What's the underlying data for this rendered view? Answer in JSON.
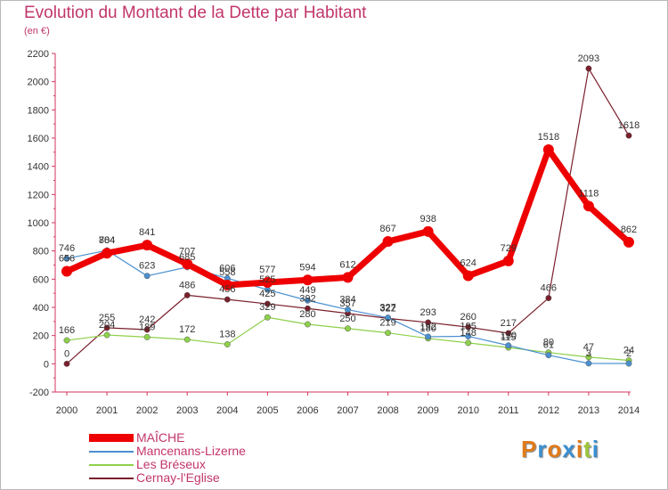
{
  "title": "Evolution du Montant de la Dette par Habitant",
  "subtitle": "(en €)",
  "logo": {
    "text": "Proxiti",
    "colors": [
      "#e07b1a",
      "#3a8fd0",
      "#e07b1a",
      "#3a8fd0",
      "#e07b1a",
      "#9cc63b",
      "#3a8fd0"
    ]
  },
  "chart_data": {
    "type": "line",
    "title": "Evolution du Montant de la Dette par Habitant",
    "subtitle": "(en €)",
    "x": [
      "2000",
      "2001",
      "2002",
      "2003",
      "2004",
      "2005",
      "2006",
      "2007",
      "2008",
      "2009",
      "2010",
      "2011",
      "2012",
      "2013",
      "2014"
    ],
    "ylim": [
      -200,
      2200
    ],
    "yticks": [
      -200,
      0,
      200,
      400,
      600,
      800,
      1000,
      1200,
      1400,
      1600,
      1800,
      2000,
      2200
    ],
    "grid": false,
    "legend": "bottom-left",
    "series": [
      {
        "name": "MAÎCHE",
        "color": "#ee0000",
        "values": [
          656,
          784,
          841,
          707,
          558,
          577,
          594,
          612,
          867,
          938,
          624,
          729,
          1518,
          1118,
          862
        ]
      },
      {
        "name": "Mancenans-Lizerne",
        "color": "#4a90d0",
        "values": [
          746,
          804,
          623,
          685,
          606,
          525,
          449,
          384,
          327,
          192,
          195,
          130,
          61,
          3,
          2
        ]
      },
      {
        "name": "Les Bréseux",
        "color": "#8ed04a",
        "values": [
          166,
          204,
          189,
          172,
          138,
          329,
          280,
          250,
          219,
          180,
          148,
          115,
          80,
          47,
          24
        ]
      },
      {
        "name": "Cernay-l'Eglise",
        "color": "#7a1f2b",
        "values": [
          0,
          255,
          242,
          486,
          456,
          425,
          392,
          357,
          322,
          293,
          260,
          217,
          466,
          2093,
          1618
        ]
      }
    ]
  }
}
